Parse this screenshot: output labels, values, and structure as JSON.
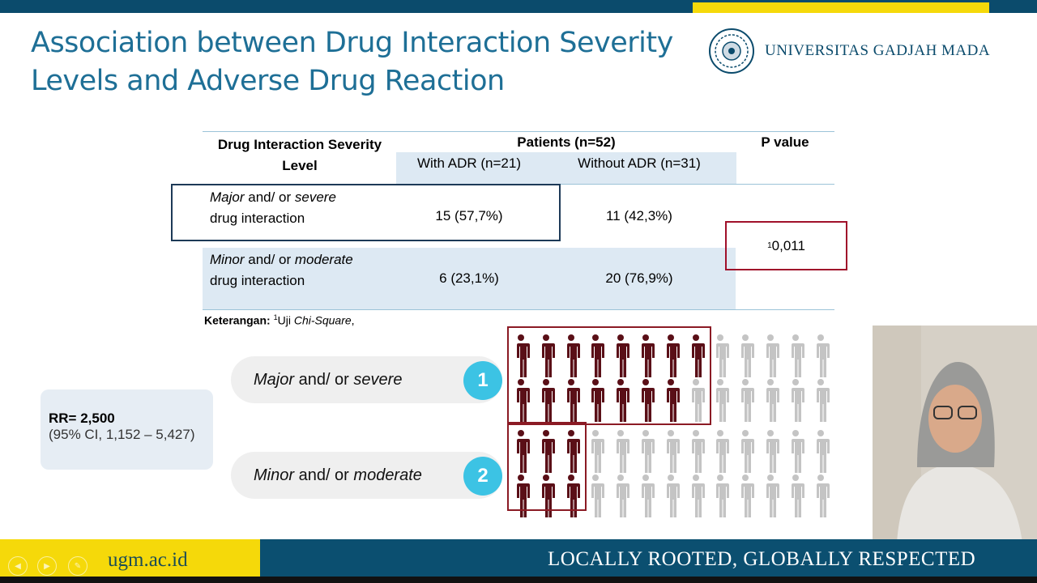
{
  "title_lines": [
    "Association between Drug Interaction Severity",
    "Levels and Adverse Drug Reaction"
  ],
  "logo_text": "UNIVERSITAS GADJAH MADA",
  "table": {
    "col1_header": [
      "Drug Interaction Severity",
      "Level"
    ],
    "group_header": "Patients (n=52)",
    "sub_headers": [
      "With ADR (n=21)",
      "Without ADR (n=31)"
    ],
    "pvalue_header": "P value",
    "rows": [
      {
        "label_italic": "Major",
        "label_mid": " and/ or ",
        "label_italic2": "severe",
        "label_line2": "drug interaction",
        "with_adr": "15 (57,7%)",
        "without_adr": "11 (42,3%)"
      },
      {
        "label_italic": "Minor",
        "label_mid": " and/ or ",
        "label_italic2": "moderate",
        "label_line2": "drug interaction",
        "with_adr": "6 (23,1%)",
        "without_adr": "20 (76,9%)"
      }
    ],
    "pvalue_sup": "1",
    "pvalue": "0,011"
  },
  "note": {
    "label": "Keterangan:",
    "sup": "1",
    "text_prefix": "Uji ",
    "text_italic": "Chi-Square",
    "text_suffix": ","
  },
  "rr": {
    "line1": "RR= 2,500",
    "line2": "(95% CI, 1,152 – 5,427)"
  },
  "pictogram": [
    {
      "number": "1",
      "italic1": "Major",
      "mid": " and/ or ",
      "italic2": "severe",
      "total": 26,
      "with_adr": 15
    },
    {
      "number": "2",
      "italic1": "Minor",
      "mid": " and/ or ",
      "italic2": "moderate",
      "total": 26,
      "with_adr": 6
    }
  ],
  "colors": {
    "adr": "#5a0f17",
    "no_adr": "#c4c4c4",
    "accent": "#3cc3e4",
    "navy": "#0b4f70",
    "yellow": "#f5d90a"
  },
  "footer": {
    "site": "ugm.ac.id",
    "motto": "LOCALLY ROOTED, GLOBALLY RESPECTED"
  }
}
